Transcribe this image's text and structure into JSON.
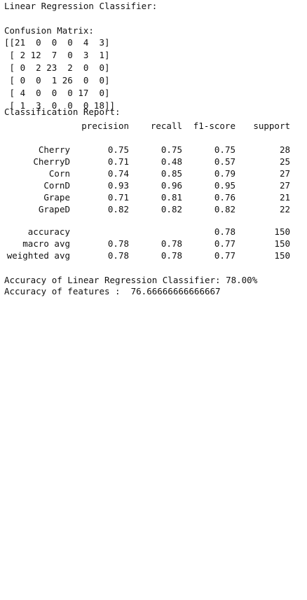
{
  "output": {
    "header": "Linear Regression Classifier:",
    "confusion_title": "Confusion Matrix:",
    "matrix_lines": [
      "[[21  0  0  0  4  3]",
      " [ 2 12  7  0  3  1]",
      " [ 0  2 23  2  0  0]",
      " [ 0  0  1 26  0  0]",
      " [ 4  0  0  0 17  0]",
      " [ 1  3  0  0  0 18]]"
    ],
    "report_title": "Classification Report:",
    "report": {
      "columns": [
        "precision",
        "recall",
        "f1-score",
        "support"
      ],
      "rows": [
        {
          "label": "Cherry",
          "precision": "0.75",
          "recall": "0.75",
          "f1": "0.75",
          "support": "28"
        },
        {
          "label": "CherryD",
          "precision": "0.71",
          "recall": "0.48",
          "f1": "0.57",
          "support": "25"
        },
        {
          "label": "Corn",
          "precision": "0.74",
          "recall": "0.85",
          "f1": "0.79",
          "support": "27"
        },
        {
          "label": "CornD",
          "precision": "0.93",
          "recall": "0.96",
          "f1": "0.95",
          "support": "27"
        },
        {
          "label": "Grape",
          "precision": "0.71",
          "recall": "0.81",
          "f1": "0.76",
          "support": "21"
        },
        {
          "label": "GrapeD",
          "precision": "0.82",
          "recall": "0.82",
          "f1": "0.82",
          "support": "22"
        }
      ],
      "summary": [
        {
          "label": "accuracy",
          "precision": "",
          "recall": "",
          "f1": "0.78",
          "support": "150"
        },
        {
          "label": "macro avg",
          "precision": "0.78",
          "recall": "0.78",
          "f1": "0.77",
          "support": "150"
        },
        {
          "label": "weighted avg",
          "precision": "0.78",
          "recall": "0.78",
          "f1": "0.77",
          "support": "150"
        }
      ]
    },
    "accuracy_line": "Accuracy of Linear Regression Classifier: 78.00%",
    "features_line": "Accuracy of features :  76.66666666666667"
  }
}
